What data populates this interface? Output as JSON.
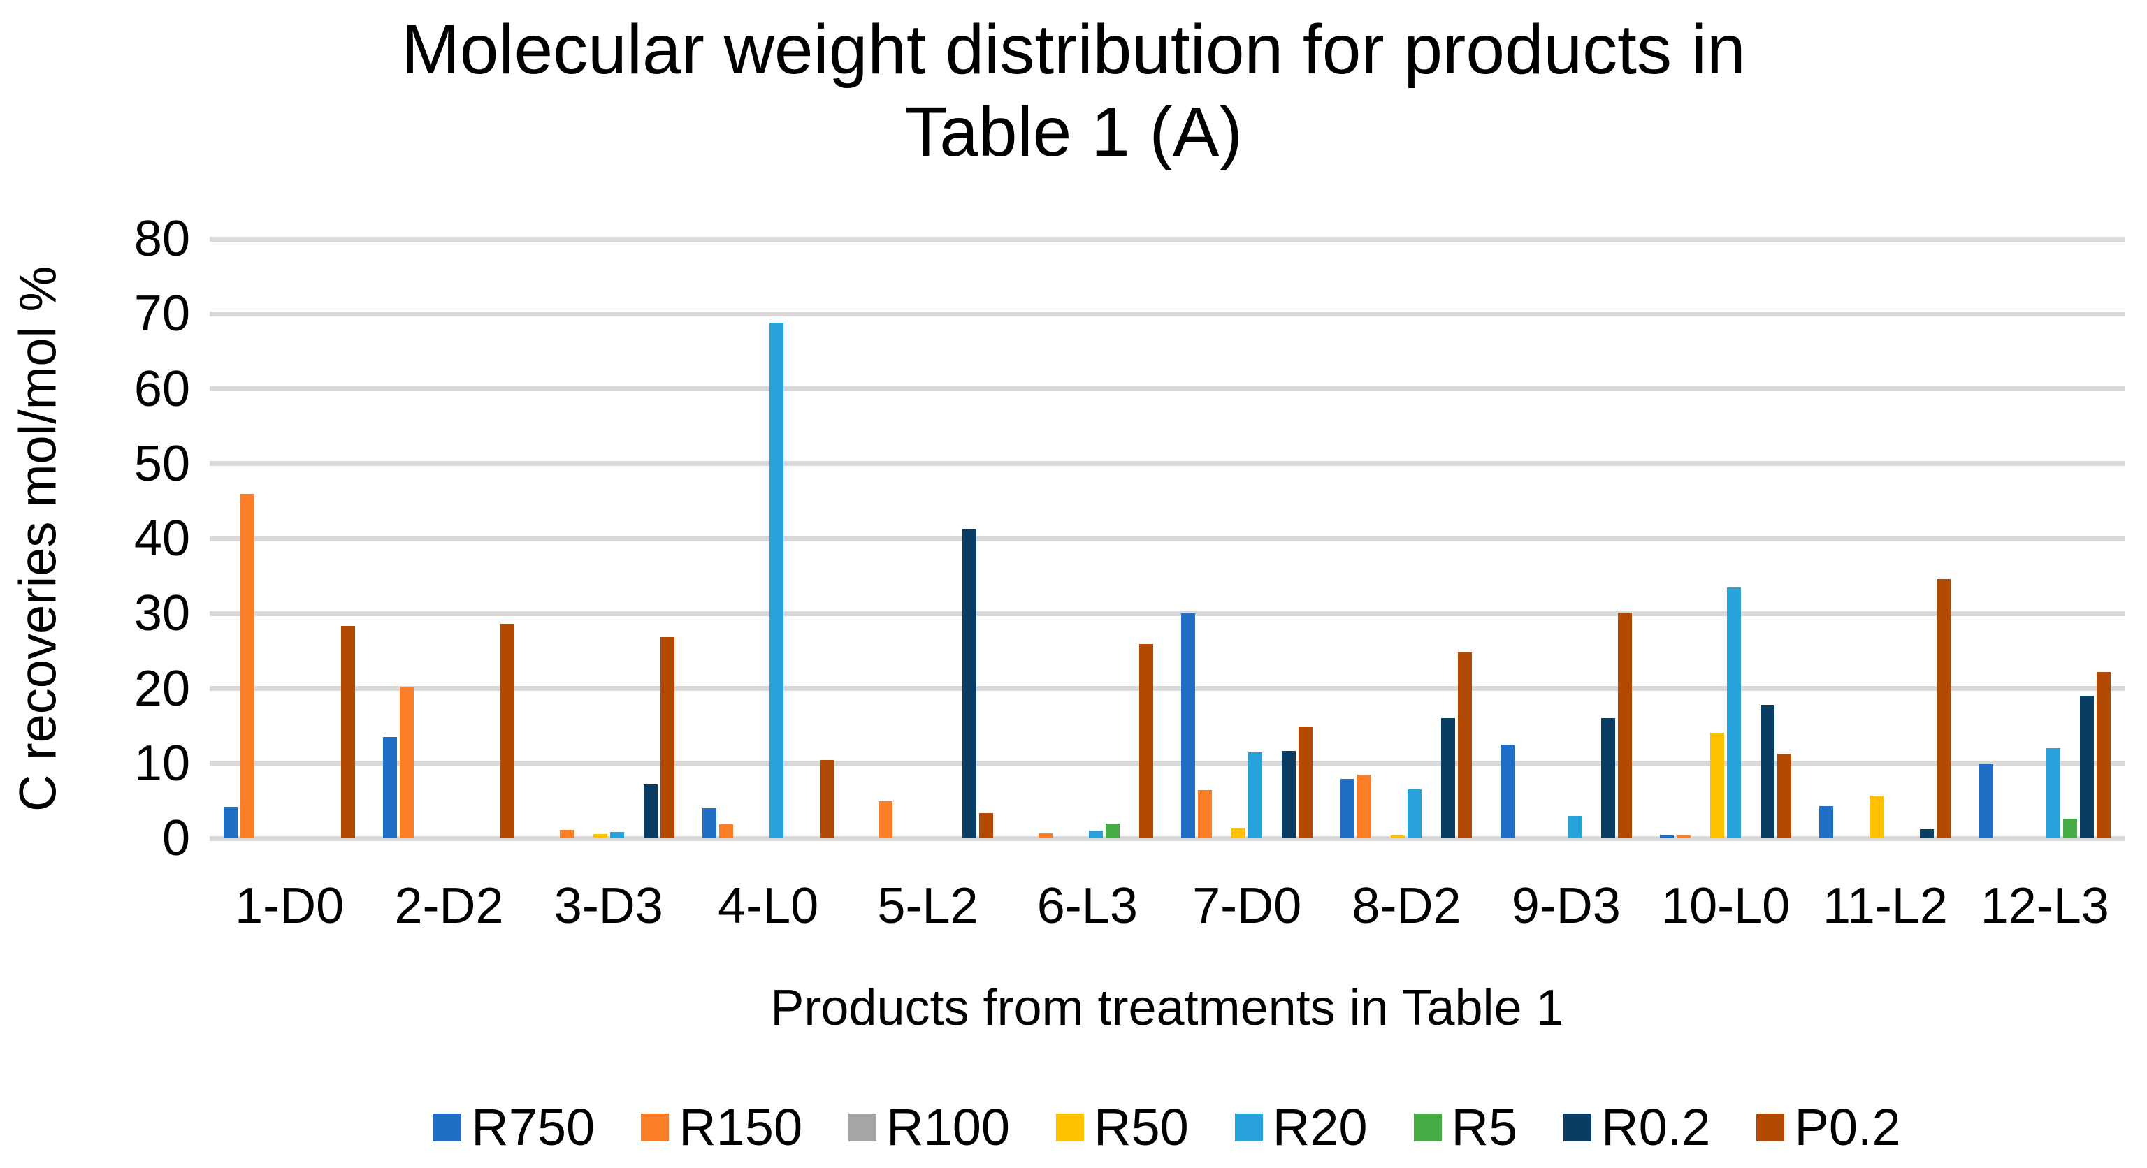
{
  "chart_data": {
    "type": "bar",
    "title": "Molecular weight distribution for products in\nTable 1 (A)",
    "xlabel": "Products from treatments in Table 1",
    "ylabel": "C recoveries mol/mol %",
    "ylim": [
      0,
      80
    ],
    "yticks": [
      0,
      10,
      20,
      30,
      40,
      50,
      60,
      70,
      80
    ],
    "grid": true,
    "legend_position": "bottom",
    "categories": [
      "1-D0",
      "2-D2",
      "3-D3",
      "4-L0",
      "5-L2",
      "6-L3",
      "7-D0",
      "8-D2",
      "9-D3",
      "10-L0",
      "11-L2",
      "12-L3"
    ],
    "series": [
      {
        "name": "R750",
        "color": "#1E6FC5",
        "values": [
          4.2,
          13.5,
          0,
          4.0,
          0,
          0,
          30.0,
          7.9,
          12.5,
          0.5,
          4.3,
          9.9
        ]
      },
      {
        "name": "R150",
        "color": "#FB7D26",
        "values": [
          46.0,
          20.2,
          1.1,
          1.9,
          4.9,
          0.7,
          6.4,
          8.5,
          0,
          0.4,
          0,
          0
        ]
      },
      {
        "name": "R100",
        "color": "#A6A6A6",
        "values": [
          0,
          0,
          0,
          0,
          0,
          0,
          0,
          0,
          0,
          0,
          0,
          0
        ]
      },
      {
        "name": "R50",
        "color": "#FFC000",
        "values": [
          0,
          0,
          0.6,
          0,
          0,
          0,
          1.3,
          0.4,
          0,
          14.1,
          5.7,
          0
        ]
      },
      {
        "name": "R20",
        "color": "#27A2DB",
        "values": [
          0,
          0,
          0.8,
          68.8,
          0,
          1.0,
          11.5,
          6.5,
          3.0,
          33.5,
          0,
          12.0
        ]
      },
      {
        "name": "R5",
        "color": "#47AC45",
        "values": [
          0,
          0,
          0,
          0,
          0,
          2.0,
          0,
          0,
          0,
          0,
          0,
          2.6
        ]
      },
      {
        "name": "R0.2",
        "color": "#093D64",
        "values": [
          0,
          0,
          7.2,
          0,
          41.3,
          0,
          11.7,
          16.0,
          16.0,
          17.8,
          1.2,
          19.0
        ]
      },
      {
        "name": "P0.2",
        "color": "#B34A04",
        "values": [
          28.3,
          28.6,
          26.9,
          10.4,
          3.4,
          25.9,
          14.9,
          24.8,
          30.1,
          11.3,
          34.6,
          22.2
        ]
      }
    ]
  },
  "colors": {
    "gridline": "#D9D9D9",
    "text": "#000000",
    "background": "#FFFFFF"
  }
}
